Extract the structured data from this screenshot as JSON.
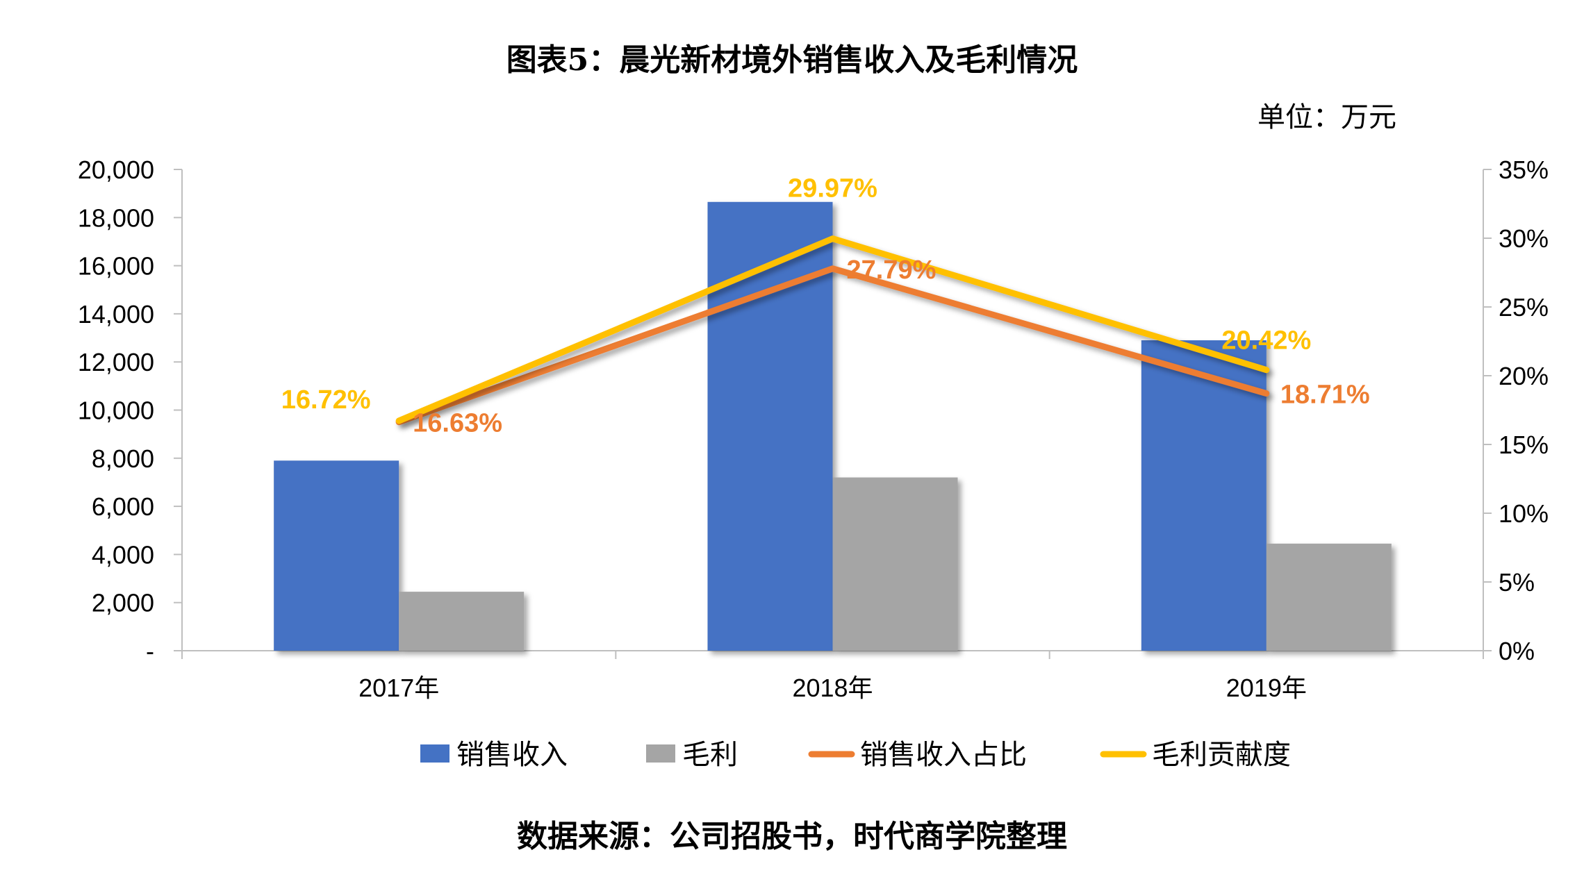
{
  "title": "图表5：晨光新材境外销售收入及毛利情况",
  "unit": "单位：万元",
  "source": "数据来源：公司招股书，时代商学院整理",
  "chart_data": {
    "type": "bar",
    "categories": [
      "2017年",
      "2018年",
      "2019年"
    ],
    "series": [
      {
        "name": "销售收入",
        "type": "bar",
        "axis": "left",
        "color": "#4472C4",
        "values": [
          7900,
          18650,
          12900
        ]
      },
      {
        "name": "毛利",
        "type": "bar",
        "axis": "left",
        "color": "#A5A5A5",
        "values": [
          2450,
          7200,
          4450
        ]
      },
      {
        "name": "销售收入占比",
        "type": "line",
        "axis": "right",
        "color": "#ED7D31",
        "values": [
          16.63,
          27.79,
          18.71
        ],
        "labels": [
          "16.63%",
          "27.79%",
          "18.71%"
        ]
      },
      {
        "name": "毛利贡献度",
        "type": "line",
        "axis": "right",
        "color": "#FFC000",
        "values": [
          16.72,
          29.97,
          20.42
        ],
        "labels": [
          "16.72%",
          "29.97%",
          "20.42%"
        ]
      }
    ],
    "y_left": {
      "ylim": [
        0,
        20000
      ],
      "ticks": [
        "-",
        "2,000",
        "4,000",
        "6,000",
        "8,000",
        "10,000",
        "12,000",
        "14,000",
        "16,000",
        "18,000",
        "20,000"
      ]
    },
    "y_right": {
      "ylim": [
        0,
        35
      ],
      "ticks": [
        "0%",
        "5%",
        "10%",
        "15%",
        "20%",
        "25%",
        "30%",
        "35%"
      ]
    },
    "grid": false,
    "legend_position": "bottom"
  }
}
